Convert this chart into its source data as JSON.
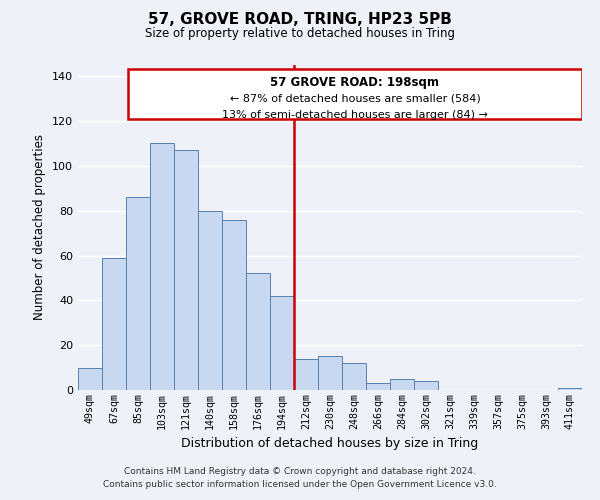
{
  "title": "57, GROVE ROAD, TRING, HP23 5PB",
  "subtitle": "Size of property relative to detached houses in Tring",
  "xlabel": "Distribution of detached houses by size in Tring",
  "ylabel": "Number of detached properties",
  "categories": [
    "49sqm",
    "67sqm",
    "85sqm",
    "103sqm",
    "121sqm",
    "140sqm",
    "158sqm",
    "176sqm",
    "194sqm",
    "212sqm",
    "230sqm",
    "248sqm",
    "266sqm",
    "284sqm",
    "302sqm",
    "321sqm",
    "339sqm",
    "357sqm",
    "375sqm",
    "393sqm",
    "411sqm"
  ],
  "values": [
    10,
    59,
    86,
    110,
    107,
    80,
    76,
    52,
    42,
    14,
    15,
    12,
    3,
    5,
    4,
    0,
    0,
    0,
    0,
    0,
    1
  ],
  "bar_color": "#c8d8f0",
  "bar_edge_color": "#5580b0",
  "vline_x": 8.5,
  "vline_color": "#cc0000",
  "box_text_line1": "57 GROVE ROAD: 198sqm",
  "box_text_line2": "← 87% of detached houses are smaller (584)",
  "box_text_line3": "13% of semi-detached houses are larger (84) →",
  "box_color": "#cc0000",
  "box_fill": "#ffffff",
  "ylim": [
    0,
    145
  ],
  "yticks": [
    0,
    20,
    40,
    60,
    80,
    100,
    120,
    140
  ],
  "footer1": "Contains HM Land Registry data © Crown copyright and database right 2024.",
  "footer2": "Contains public sector information licensed under the Open Government Licence v3.0.",
  "background_color": "#eef2f8",
  "grid_color": "#ffffff"
}
